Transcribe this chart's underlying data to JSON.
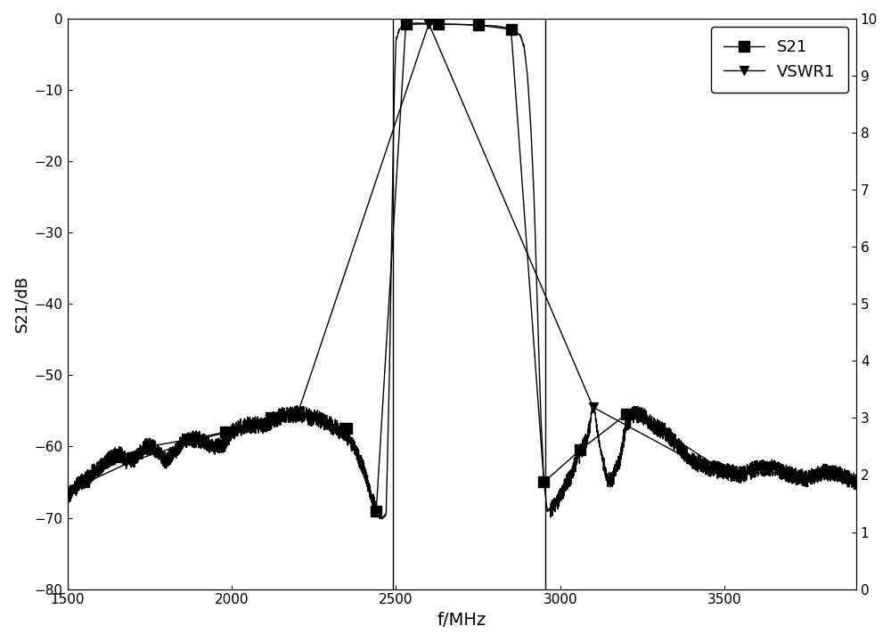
{
  "xlabel": "f/MHz",
  "ylabel_left": "S21/dB",
  "xlim": [
    1500,
    3900
  ],
  "ylim_left": [
    -80,
    0
  ],
  "ylim_right": [
    0,
    10
  ],
  "yticks_left": [
    0,
    -10,
    -20,
    -30,
    -40,
    -50,
    -60,
    -70,
    -80
  ],
  "yticks_right": [
    0,
    1,
    2,
    3,
    4,
    5,
    6,
    7,
    8,
    9,
    10
  ],
  "xticks": [
    1500,
    2000,
    2500,
    3000,
    3500
  ],
  "line_color": "#000000",
  "legend_labels": [
    "S21",
    "VSWR1"
  ],
  "background_color": "#ffffff",
  "figsize": [
    10,
    7.21
  ],
  "dpi": 100,
  "s21_curve": {
    "segments": [
      {
        "f": [
          1500,
          1520,
          1540,
          1560,
          1580,
          1600,
          1620,
          1640,
          1660,
          1680,
          1700,
          1720,
          1740,
          1760,
          1780,
          1800,
          1820,
          1840,
          1860,
          1880,
          1900,
          1920,
          1940,
          1960,
          1980,
          2000,
          2020,
          2040,
          2060,
          2080,
          2100,
          2120,
          2140,
          2160,
          2180,
          2200,
          2220,
          2240,
          2260,
          2280,
          2300,
          2320,
          2340,
          2360,
          2380,
          2400,
          2420,
          2440
        ],
        "v": [
          -67,
          -66,
          -65,
          -64.5,
          -63.5,
          -63,
          -62,
          -61.5,
          -61,
          -62,
          -62,
          -61,
          -60,
          -60,
          -61,
          -62,
          -61,
          -60,
          -59,
          -59,
          -59,
          -59.5,
          -60,
          -60,
          -59.5,
          -58,
          -57.5,
          -57,
          -57,
          -57,
          -57,
          -56.5,
          -56,
          -55.5,
          -55.5,
          -55.5,
          -55.5,
          -56,
          -56,
          -56.5,
          -57,
          -57.5,
          -58,
          -59,
          -61,
          -63,
          -66,
          -69
        ]
      },
      {
        "f": [
          2440,
          2450,
          2460,
          2470,
          2480,
          2490
        ],
        "v": [
          -69,
          -70,
          -70,
          -69.5,
          -50,
          -22
        ]
      },
      {
        "f": [
          2490,
          2495,
          2500,
          2510,
          2520,
          2530,
          2560,
          2600,
          2650,
          2700,
          2750,
          2800,
          2830,
          2850,
          2870,
          2880
        ],
        "v": [
          -22,
          -10,
          -3,
          -1.5,
          -1.0,
          -0.8,
          -0.6,
          -0.7,
          -0.8,
          -0.8,
          -0.9,
          -1.0,
          -1.2,
          -1.5,
          -2.0,
          -2.5
        ]
      },
      {
        "f": [
          2880,
          2890,
          2900,
          2910,
          2920,
          2930,
          2940,
          2950,
          2960
        ],
        "v": [
          -2.5,
          -4,
          -8,
          -15,
          -25,
          -40,
          -55,
          -65,
          -69
        ]
      },
      {
        "f": [
          2960,
          2980,
          3000,
          3010,
          3020,
          3030,
          3040,
          3050,
          3060,
          3070,
          3080,
          3090,
          3095,
          3100,
          3105,
          3110,
          3120,
          3130,
          3140,
          3150,
          3160,
          3170,
          3180,
          3200,
          3220,
          3240,
          3260,
          3280,
          3300,
          3320,
          3340,
          3360,
          3380,
          3400,
          3450,
          3500,
          3550,
          3600,
          3650,
          3700,
          3750,
          3800,
          3850,
          3900
        ],
        "v": [
          -69,
          -68.5,
          -67,
          -66,
          -65,
          -64.5,
          -63,
          -62,
          -61,
          -60,
          -59,
          -57,
          -55,
          -54.5,
          -55,
          -57,
          -60,
          -62,
          -64,
          -65,
          -64.5,
          -63,
          -62,
          -57,
          -55.5,
          -55.5,
          -56,
          -57,
          -57.5,
          -58,
          -59,
          -60,
          -61,
          -62,
          -63,
          -63.5,
          -64,
          -63,
          -63,
          -64,
          -64.5,
          -63.5,
          -64,
          -65
        ]
      }
    ]
  },
  "s21_markers": {
    "f": [
      1550,
      1650,
      1750,
      1870,
      1980,
      2120,
      2200,
      2350,
      2440,
      2530,
      2630,
      2750,
      2850,
      2950,
      3060,
      3200,
      3300,
      3500,
      3700,
      3820
    ],
    "v": [
      -65,
      -61.5,
      -60,
      -59,
      -58,
      -56,
      -55.5,
      -57.5,
      -69,
      -0.8,
      -0.7,
      -0.9,
      -1.5,
      -65,
      -60.5,
      -55.5,
      -57.5,
      -63.5,
      -64,
      -63.5
    ]
  },
  "vswr_markers": {
    "f": [
      1560,
      1700,
      1900,
      2200,
      2600,
      3100,
      3400,
      3700
    ],
    "v": [
      -65,
      -62,
      -59,
      -55.5,
      -0.7,
      -54.5,
      -62,
      -64
    ]
  },
  "vlines": [
    2492,
    2955
  ],
  "passband_region": [
    2492,
    2955
  ]
}
